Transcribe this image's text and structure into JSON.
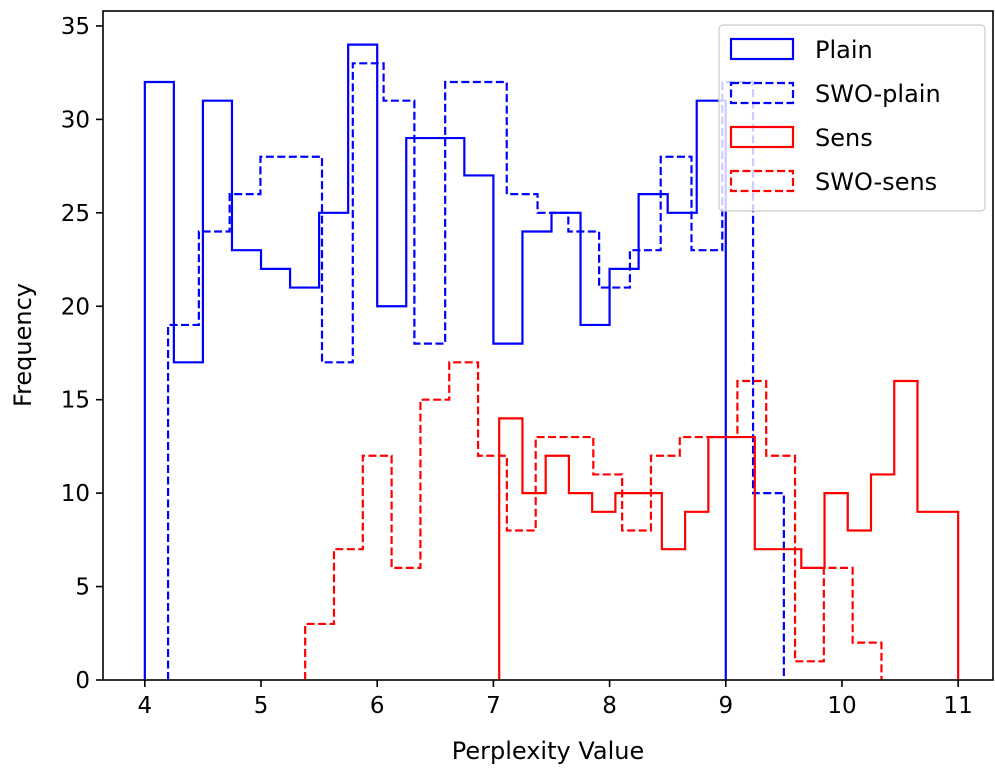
{
  "chart_data": {
    "type": "histogram",
    "title": "",
    "xlabel": "Perplexity Value",
    "ylabel": "Frequency",
    "xlim": [
      3.64,
      11.3
    ],
    "ylim": [
      0,
      35.8
    ],
    "xticks": [
      4,
      5,
      6,
      7,
      8,
      9,
      10,
      11
    ],
    "yticks": [
      0,
      5,
      10,
      15,
      20,
      25,
      30,
      35
    ],
    "legend_position": "top-right",
    "series": [
      {
        "name": "Plain",
        "color": "#0000ff",
        "linestyle": "solid",
        "bin_edges": [
          4.0,
          4.25,
          4.5,
          4.75,
          5.0,
          5.25,
          5.5,
          5.75,
          6.0,
          6.25,
          6.5,
          6.75,
          7.0,
          7.25,
          7.5,
          7.75,
          8.0,
          8.25,
          8.5,
          8.75,
          9.0
        ],
        "counts": [
          32,
          17,
          31,
          23,
          22,
          21,
          25,
          34,
          20,
          29,
          29,
          27,
          18,
          24,
          25,
          19,
          22,
          26,
          25,
          31
        ]
      },
      {
        "name": "SWO-plain",
        "color": "#0000ff",
        "linestyle": "dashed",
        "bin_edges": [
          4.2,
          4.465,
          4.73,
          4.995,
          5.26,
          5.525,
          5.79,
          6.055,
          6.32,
          6.585,
          6.85,
          7.115,
          7.38,
          7.645,
          7.91,
          8.175,
          8.44,
          8.705,
          8.97,
          9.235,
          9.5
        ],
        "counts": [
          19,
          24,
          26,
          28,
          28,
          17,
          33,
          31,
          18,
          32,
          32,
          26,
          25,
          24,
          21,
          23,
          28,
          23,
          32,
          10
        ]
      },
      {
        "name": "Sens",
        "color": "#ff0000",
        "linestyle": "solid",
        "bin_edges": [
          7.05,
          7.25,
          7.45,
          7.65,
          7.85,
          8.05,
          8.25,
          8.45,
          8.65,
          8.85,
          9.05,
          9.25,
          9.45,
          9.65,
          9.85,
          10.05,
          10.25,
          10.45,
          10.65,
          10.85,
          11.0
        ],
        "counts": [
          14,
          10,
          12,
          10,
          9,
          10,
          10,
          7,
          9,
          13,
          13,
          7,
          7,
          6,
          10,
          8,
          11,
          16,
          9,
          9
        ]
      },
      {
        "name": "SWO-sens",
        "color": "#ff0000",
        "linestyle": "dashed",
        "bin_edges": [
          5.38,
          5.628,
          5.876,
          6.124,
          6.372,
          6.62,
          6.868,
          7.116,
          7.364,
          7.612,
          7.86,
          8.108,
          8.356,
          8.604,
          8.852,
          9.1,
          9.348,
          9.596,
          9.844,
          10.092,
          10.34
        ],
        "counts": [
          3,
          7,
          12,
          6,
          15,
          17,
          12,
          8,
          13,
          13,
          11,
          8,
          12,
          13,
          13,
          16,
          12,
          1,
          6,
          2
        ]
      }
    ]
  }
}
